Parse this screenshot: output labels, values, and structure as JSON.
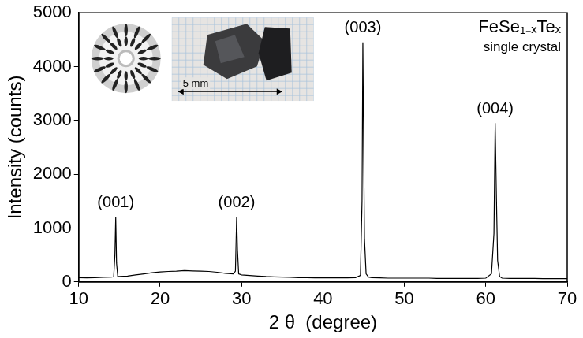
{
  "chart_data": {
    "type": "line",
    "title": "FeSe₁₋ₓTeₓ",
    "subtitle": "single crystal",
    "x_label": "2 θ  (degree)",
    "y_label": "Intensity (counts)",
    "color": "#000000",
    "grid": false,
    "xlim": [
      10,
      70
    ],
    "ylim": [
      0,
      5000
    ],
    "xticks": [
      10,
      20,
      30,
      40,
      50,
      60,
      70
    ],
    "yticks": [
      0,
      1000,
      2000,
      3000,
      4000,
      5000
    ],
    "annotations": [
      {
        "text": "(001)",
        "x": 14.55
      },
      {
        "text": "(002)",
        "x": 29.4
      },
      {
        "text": "(003)",
        "x": 44.9
      },
      {
        "text": "(004)",
        "x": 61.15
      }
    ],
    "scale_bar_label": "5 mm",
    "x": [
      10,
      11,
      12,
      13,
      14,
      14.3,
      14.45,
      14.55,
      14.65,
      14.8,
      15,
      16,
      17,
      18,
      19,
      20,
      21,
      22,
      23,
      24,
      25,
      26,
      27,
      28,
      29,
      29.25,
      29.4,
      29.5,
      29.65,
      30,
      31,
      32,
      33,
      34,
      35,
      36,
      37,
      38,
      39,
      40,
      41,
      42,
      43,
      44,
      44.6,
      44.8,
      44.9,
      45.0,
      45.1,
      45.3,
      45.6,
      46,
      47,
      48,
      49,
      50,
      51,
      52,
      53,
      54,
      55,
      56,
      57,
      58,
      59,
      60,
      60.7,
      61,
      61.15,
      61.3,
      61.45,
      61.7,
      62,
      63,
      64,
      65,
      66,
      67,
      68,
      69,
      70
    ],
    "values": [
      80,
      75,
      80,
      85,
      90,
      95,
      500,
      1200,
      350,
      100,
      100,
      110,
      130,
      150,
      170,
      185,
      195,
      200,
      210,
      205,
      200,
      195,
      180,
      160,
      150,
      200,
      1200,
      600,
      150,
      130,
      120,
      110,
      100,
      95,
      90,
      85,
      80,
      80,
      75,
      75,
      75,
      75,
      75,
      80,
      120,
      1500,
      4450,
      2500,
      800,
      150,
      90,
      80,
      75,
      70,
      70,
      70,
      70,
      70,
      70,
      65,
      65,
      65,
      65,
      65,
      65,
      70,
      150,
      900,
      2950,
      1600,
      400,
      100,
      70,
      65,
      65,
      65,
      65,
      60,
      60,
      60,
      60
    ]
  }
}
